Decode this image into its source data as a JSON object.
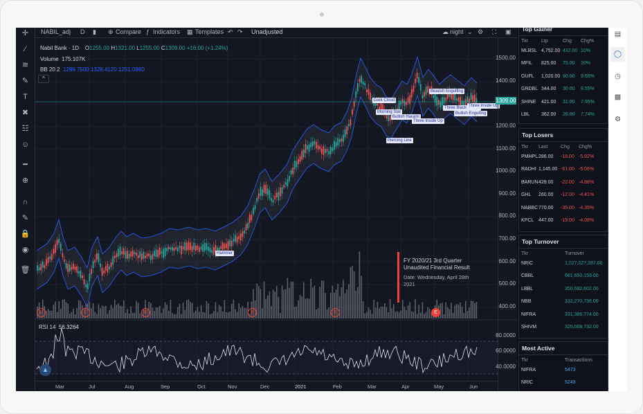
{
  "toolbar": {
    "symbol": "NABIL_adj",
    "interval": "D",
    "compare": "Compare",
    "indicators": "Indicators",
    "templates": "Templates",
    "adjust": "Unadjusted",
    "theme": "night"
  },
  "legend": {
    "title": "Nabil Bank · 1D",
    "open_label": "O",
    "open": "1255.00",
    "high_label": "H",
    "high": "1321.00",
    "low_label": "L",
    "low": "1255.00",
    "close_label": "C",
    "close": "1309.00",
    "change": "+16.00 (+1.24%)",
    "volume_label": "Volume",
    "volume": "175.107K",
    "bb_label": "BB 20 2",
    "bb_values": "1289.7500  1328.4120  1251.0880",
    "collapse": "^"
  },
  "price_axis": {
    "ticks": [
      "1500.00",
      "1400.00",
      "1300.00",
      "1200.00",
      "1100.00",
      "1000.00",
      "900.00",
      "800.00",
      "700.00",
      "600.00",
      "500.00",
      "400.00",
      "80.0000",
      "60.0000",
      "40.0000"
    ],
    "last_price": "1309.00"
  },
  "time_axis": [
    "Mar",
    "Jul",
    "Aug",
    "Sep",
    "Oct",
    "Nov",
    "Dec",
    "2021",
    "Feb",
    "Mar",
    "Apr",
    "May",
    "Jun"
  ],
  "rsi": {
    "label": "RSI 14",
    "value": "56.3264"
  },
  "news": {
    "title": "FY 2020/21 3rd Quarter Unaudited Financial Result",
    "date": "Date: Wednesday, April 28th 2021"
  },
  "patterns": [
    "Hammer",
    "Dark Cloud",
    "Morning Star",
    "Bullish Harami",
    "Three Inside Up",
    "Piercing Line",
    "Bearish Engulfing",
    "Three Black Crows",
    "Three Inside Up",
    "Bullish Engulfing"
  ],
  "earnings_badge": "E",
  "panels": {
    "top_gainer": {
      "title": "Top Gainer",
      "headers": [
        "Tkr",
        "Ltp",
        "Chg",
        "Chg%"
      ],
      "rows": [
        [
          "MLBSL",
          "4,752.00",
          "432.00",
          "10%"
        ],
        [
          "MFIL",
          "825.00",
          "75.00",
          "10%"
        ],
        [
          "GUFL",
          "1,020.00",
          "90.00",
          "9.68%"
        ],
        [
          "GRDBL",
          "344.00",
          "30.00",
          "9.55%"
        ],
        [
          "SHINE",
          "421.00",
          "31.00",
          "7.95%"
        ],
        [
          "LBL",
          "362.00",
          "26.00",
          "7.74%"
        ]
      ]
    },
    "top_losers": {
      "title": "Top Losers",
      "headers": [
        "Tkr",
        "Last",
        "Chg",
        "Chg%"
      ],
      "rows": [
        [
          "PMHPL",
          "286.00",
          "-18.00",
          "-5.92%"
        ],
        [
          "RADHI",
          "1,145.00",
          "-61.00",
          "-5.06%"
        ],
        [
          "BARUN",
          "429.00",
          "-22.00",
          "-4.88%"
        ],
        [
          "GHL",
          "260.00",
          "-12.00",
          "-4.41%"
        ],
        [
          "NABBC",
          "770.00",
          "-35.00",
          "-4.35%"
        ],
        [
          "KPCL",
          "447.00",
          "-19.00",
          "-4.08%"
        ]
      ]
    },
    "top_turnover": {
      "title": "Top Turnover",
      "headers": [
        "Tkr",
        "Turnover"
      ],
      "rows": [
        [
          "NRIC",
          "1,027,027,287.00"
        ],
        [
          "CBBL",
          "681,650,159.00"
        ],
        [
          "LBBL",
          "350,592,602.00"
        ],
        [
          "NBB",
          "332,270,736.00"
        ],
        [
          "NIFRA",
          "331,386,774.00"
        ],
        [
          "SHIVM",
          "325,008,732.00"
        ]
      ]
    },
    "most_active": {
      "title": "Most Active",
      "headers": [
        "Tkr",
        "Transactions"
      ],
      "rows": [
        [
          "NIFRA",
          "5473"
        ],
        [
          "NRIC",
          "5243"
        ]
      ]
    }
  },
  "colors": {
    "background": "#131722",
    "up": "#26a69a",
    "down": "#ef5350",
    "band": "#2962ff",
    "volume": "#787b86"
  }
}
